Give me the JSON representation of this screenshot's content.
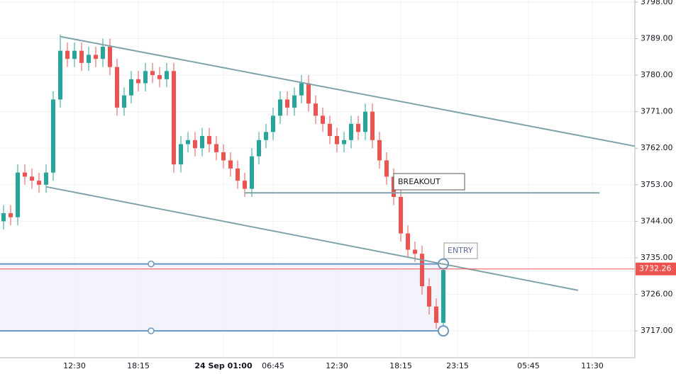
{
  "chart_data": {
    "type": "candlestick",
    "categories": [
      null,
      null,
      null,
      null,
      null,
      null,
      null,
      null,
      null,
      null,
      "12:30",
      null,
      null,
      null,
      null,
      null,
      null,
      null,
      null,
      "18:15",
      null,
      null,
      null,
      null,
      null,
      null,
      null,
      null,
      null,
      null,
      null,
      "24 Sep 01:00",
      null,
      null,
      null,
      null,
      null,
      null,
      "06:45",
      null,
      null,
      null,
      null,
      null,
      null,
      null,
      null,
      "12:30",
      null,
      null,
      null,
      null,
      null,
      null,
      null,
      null,
      "18:15",
      null,
      null,
      null,
      null,
      null,
      null,
      null,
      "23:15",
      null,
      null,
      null,
      null,
      null,
      null,
      null,
      null,
      null,
      "05:45",
      null,
      null,
      null,
      null,
      null,
      null,
      null,
      null,
      "11:30",
      null,
      null,
      null,
      null,
      null,
      null
    ],
    "open": [
      3744,
      3746,
      3745,
      3756,
      3755,
      3754,
      3753,
      3756,
      3774,
      3786,
      3784,
      3786,
      3783,
      3785,
      3784,
      3787,
      3782,
      3772,
      3775,
      3779,
      3778,
      3781,
      3780,
      3779,
      3781,
      3758,
      3763,
      3764,
      3762,
      3765,
      3763,
      3761,
      3759,
      3757,
      3754,
      3752,
      3760,
      3764,
      3766,
      3770,
      3774,
      3772,
      3775,
      3778,
      3773,
      3770,
      3768,
      3765,
      3763,
      3764,
      3768,
      3766,
      3771,
      3764,
      3759,
      3755,
      3750,
      3741,
      3737,
      3736,
      3728,
      3723,
      3719,
      null,
      null,
      null,
      null,
      null,
      null,
      null,
      null,
      null,
      null,
      null,
      null,
      null,
      null,
      null,
      null,
      null,
      null,
      null,
      null,
      null,
      null,
      null,
      null,
      null,
      null,
      null
    ],
    "high": [
      3748,
      3748,
      3758,
      3758,
      3757,
      3756,
      3758,
      3776,
      3790,
      3788,
      3788,
      3788,
      3787,
      3787,
      3789,
      3789,
      3784,
      3777,
      3781,
      3781,
      3783,
      3783,
      3782,
      3783,
      3783,
      3765,
      3766,
      3766,
      3767,
      3767,
      3765,
      3763,
      3761,
      3759,
      3756,
      3762,
      3766,
      3768,
      3772,
      3776,
      3776,
      3777,
      3780,
      3780,
      3775,
      3772,
      3770,
      3767,
      3766,
      3770,
      3770,
      3773,
      3773,
      3766,
      3761,
      3757,
      3752,
      3743,
      3739,
      3738,
      3730,
      3725,
      3734,
      null,
      null,
      null,
      null,
      null,
      null,
      null,
      null,
      null,
      null,
      null,
      null,
      null,
      null,
      null,
      null,
      null,
      null,
      null,
      null,
      null,
      null,
      null,
      null,
      null,
      null,
      null
    ],
    "low": [
      3742,
      3743,
      3743,
      3753,
      3752,
      3751,
      3751,
      3754,
      3772,
      3782,
      3782,
      3781,
      3781,
      3782,
      3782,
      3780,
      3770,
      3770,
      3773,
      3776,
      3776,
      3778,
      3777,
      3777,
      3756,
      3756,
      3761,
      3760,
      3760,
      3761,
      3759,
      3757,
      3755,
      3752,
      3750,
      3750,
      3758,
      3762,
      3764,
      3768,
      3770,
      3770,
      3773,
      3771,
      3768,
      3766,
      3763,
      3761,
      3761,
      3762,
      3764,
      3764,
      3762,
      3757,
      3753,
      3748,
      3739,
      3735,
      3734,
      3726,
      3721,
      3717.5,
      3717,
      null,
      null,
      null,
      null,
      null,
      null,
      null,
      null,
      null,
      null,
      null,
      null,
      null,
      null,
      null,
      null,
      null,
      null,
      null,
      null,
      null,
      null,
      null,
      null,
      null,
      null,
      null
    ],
    "close": [
      3746,
      3745,
      3756,
      3755,
      3754,
      3753,
      3756,
      3774,
      3786,
      3784,
      3786,
      3783,
      3785,
      3784,
      3787,
      3782,
      3772,
      3775,
      3779,
      3778,
      3781,
      3780,
      3779,
      3781,
      3758,
      3763,
      3764,
      3762,
      3765,
      3763,
      3761,
      3759,
      3757,
      3754,
      3752,
      3760,
      3764,
      3766,
      3770,
      3774,
      3772,
      3775,
      3778,
      3773,
      3770,
      3768,
      3765,
      3763,
      3764,
      3768,
      3766,
      3771,
      3764,
      3759,
      3755,
      3750,
      3741,
      3737,
      3736,
      3728,
      3723,
      3719,
      3732,
      null,
      null,
      null,
      null,
      null,
      null,
      null,
      null,
      null,
      null,
      null,
      null,
      null,
      null,
      null,
      null,
      null,
      null,
      null,
      null,
      null,
      null,
      null,
      null,
      null,
      null,
      null
    ],
    "up_color": "#26a69a",
    "down_color": "#ef5350",
    "ylim": [
      3710.4,
      3798.5
    ],
    "yticks": [
      {
        "value": 3717,
        "label": "3717.00"
      },
      {
        "value": 3726,
        "label": "3726.00"
      },
      {
        "value": 3735,
        "label": "3735.00"
      },
      {
        "value": 3744,
        "label": "3744.00"
      },
      {
        "value": 3753,
        "label": "3753.00"
      },
      {
        "value": 3762,
        "label": "3762.00"
      },
      {
        "value": 3771,
        "label": "3771.00"
      },
      {
        "value": 3780,
        "label": "3780.00"
      },
      {
        "value": 3789,
        "label": "3789.00"
      },
      {
        "value": 3798,
        "label": "3798.00"
      }
    ],
    "grid": true,
    "last_price": {
      "value": 3732.26,
      "label": "3732.26",
      "color": "#ef5350"
    },
    "trend_lines": [
      {
        "from": [
          8,
          3789.5
        ],
        "to": [
          89,
          3762.5
        ],
        "color": "#7fa3a8"
      },
      {
        "from": [
          6,
          3752.5
        ],
        "to": [
          81,
          3727
        ],
        "color": "#7fa3a8"
      },
      {
        "from": [
          34,
          3751
        ],
        "to": [
          84,
          3751
        ],
        "color": "#7fa3a8"
      }
    ],
    "position": {
      "from": 0,
      "to": 62,
      "entry": 3733.5,
      "stop": 3717,
      "color": "#6a96c4"
    },
    "annotations": {
      "breakout": "BREAKOUT",
      "entry": "ENTRY"
    }
  }
}
